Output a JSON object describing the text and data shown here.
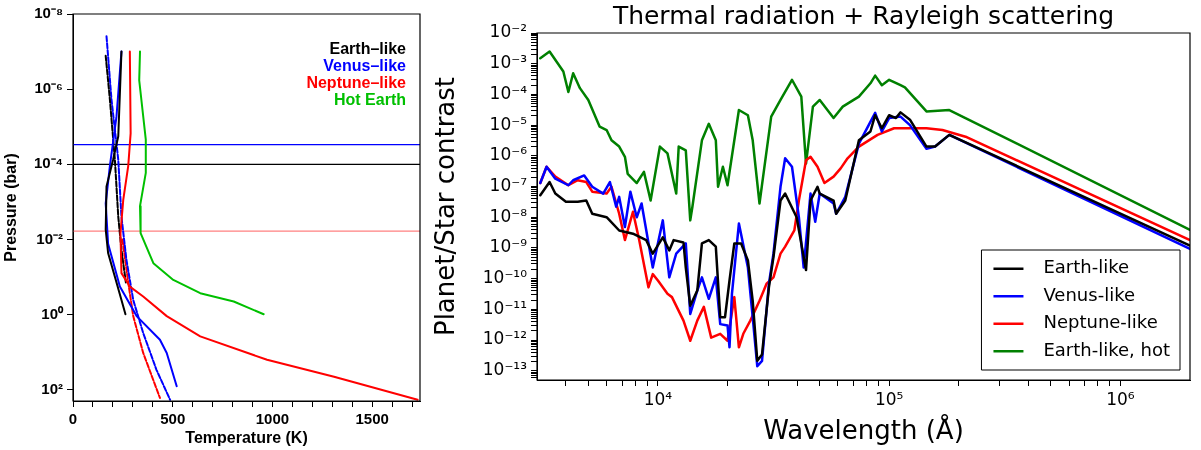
{
  "chart_data": [
    {
      "type": "line",
      "xlabel": "Temperature (K)",
      "ylabel": "Pressure (bar)",
      "log": "y",
      "legend": "top right",
      "xlim": [
        0,
        1740
      ],
      "xticks": [
        0,
        {
          "value": 100,
          "label": null
        },
        {
          "value": 200,
          "label": null
        },
        {
          "value": 300,
          "label": null
        },
        {
          "value": 400,
          "label": null
        },
        500,
        {
          "value": 600,
          "label": null
        },
        {
          "value": 700,
          "label": null
        },
        {
          "value": 800,
          "label": null
        },
        {
          "value": 900,
          "label": null
        },
        1000,
        {
          "value": 1100,
          "label": null
        },
        {
          "value": 1200,
          "label": null
        },
        {
          "value": 1300,
          "label": null
        },
        {
          "value": 1400,
          "label": null
        },
        1500,
        {
          "value": 1600,
          "label": null
        },
        {
          "value": 1700,
          "label": null
        }
      ],
      "ylim": [
        200,
        1e-08
      ],
      "yticks": [
        {
          "value": 1e-08,
          "label": "10⁻⁸"
        },
        {
          "value": 1e-06,
          "label": "10⁻⁶"
        },
        {
          "value": 0.0001,
          "label": "10⁻⁴"
        },
        {
          "value": 0.01,
          "label": "10⁻²"
        },
        {
          "value": 1,
          "label": "10⁰"
        },
        {
          "value": 100,
          "label": "10²"
        }
      ],
      "ref_lines": [
        {
          "axis": "y",
          "value": 3e-05,
          "color": "#0000ff"
        },
        {
          "axis": "y",
          "value": 0.0001,
          "color": "#000000"
        },
        {
          "axis": "y",
          "value": 0.006,
          "color": "#ff8080"
        }
      ],
      "series": [
        {
          "name": "Earth–like",
          "color": "#000000",
          "x": [
            243,
            227,
            201,
            168,
            164,
            176,
            210,
            243,
            263
          ],
          "values": [
            1e-07,
            1.8e-05,
            7.6e-05,
            0.00039,
            0.0055,
            0.023,
            0.098,
            0.41,
            0.98
          ]
        },
        {
          "name": "Venus–like",
          "color": "#0000ff",
          "x": [
            243,
            218,
            185,
            164,
            176,
            235,
            319,
            436,
            470,
            520
          ],
          "values": [
            1e-07,
            5.4e-06,
            0.00011,
            0.0011,
            0.013,
            0.18,
            1.1,
            4.7,
            10.5,
            81
          ]
        },
        {
          "name": "Neptune–like",
          "color": "#ff0000",
          "x": [
            285,
            289,
            277,
            252,
            238,
            243,
            285,
            352,
            470,
            638,
            973,
            1309,
            1728
          ],
          "values": [
            1e-07,
            1.5e-05,
            0.00011,
            0.00089,
            0.0068,
            0.079,
            0.18,
            0.33,
            1.1,
            3.8,
            16,
            45,
            186
          ]
        },
        {
          "name": "Hot Earth",
          "color": "#00c000",
          "x": [
            336,
            332,
            365,
            365,
            336,
            339,
            403,
            503,
            638,
            806,
            956
          ],
          "values": [
            1e-07,
            5.8e-07,
            2.2e-05,
            0.00017,
            0.0013,
            0.0068,
            0.043,
            0.12,
            0.27,
            0.45,
            0.98
          ]
        },
        {
          "color": "#000000",
          "line_style": "dashed",
          "x": [
            164,
            185,
            210,
            227,
            243,
            265
          ],
          "values": [
            1.3e-07,
            1.9e-06,
            7.6e-05,
            0.0025,
            0.019,
            0.14
          ]
        },
        {
          "color": "#0000ff",
          "line_style": "dashed",
          "x": [
            168,
            193,
            227,
            243,
            268,
            302,
            352,
            419,
            487
          ],
          "values": [
            3.9e-08,
            1.9e-06,
            7.6e-05,
            0.0025,
            0.035,
            0.41,
            3.1,
            30,
            186
          ]
        },
        {
          "color": "#ff0000",
          "line_style": "dashed",
          "x": [
            248,
            277,
            302,
            352,
            436
          ],
          "values": [
            0.01,
            0.14,
            1.1,
            10.5,
            166
          ]
        }
      ]
    },
    {
      "type": "line",
      "title": "Thermal radiation + Rayleigh scattering",
      "xlabel": "Wavelength (Å)",
      "ylabel": "Planet/Star contrast",
      "log": "xy",
      "legend": "bottom right",
      "xlim": [
        3000,
        2000000
      ],
      "xticks": [
        {
          "value": 4000,
          "label": null
        },
        {
          "value": 5000,
          "label": null
        },
        {
          "value": 6000,
          "label": null
        },
        {
          "value": 7000,
          "label": null
        },
        {
          "value": 8000,
          "label": null
        },
        {
          "value": 9000,
          "label": null
        },
        {
          "value": 10000,
          "label": "10⁴"
        },
        {
          "value": 20000,
          "label": null
        },
        {
          "value": 30000,
          "label": null
        },
        {
          "value": 40000,
          "label": null
        },
        {
          "value": 50000,
          "label": null
        },
        {
          "value": 60000,
          "label": null
        },
        {
          "value": 70000,
          "label": null
        },
        {
          "value": 80000,
          "label": null
        },
        {
          "value": 90000,
          "label": null
        },
        {
          "value": 100000,
          "label": "10⁵"
        },
        {
          "value": 200000,
          "label": null
        },
        {
          "value": 300000,
          "label": null
        },
        {
          "value": 400000,
          "label": null
        },
        {
          "value": 500000,
          "label": null
        },
        {
          "value": 600000,
          "label": null
        },
        {
          "value": 700000,
          "label": null
        },
        {
          "value": 800000,
          "label": null
        },
        {
          "value": 900000,
          "label": null
        },
        {
          "value": 1000000,
          "label": "10⁶"
        }
      ],
      "ylim": [
        5e-14,
        0.01
      ],
      "yticks": [
        {
          "value": 6e-14,
          "label": null
        },
        {
          "value": 7e-14,
          "label": null
        },
        {
          "value": 8e-14,
          "label": null
        },
        {
          "value": 9e-14,
          "label": null
        },
        {
          "value": 1e-13,
          "label": "10⁻¹³"
        },
        {
          "value": 2e-13,
          "label": null
        },
        {
          "value": 3e-13,
          "label": null
        },
        {
          "value": 4e-13,
          "label": null
        },
        {
          "value": 5e-13,
          "label": null
        },
        {
          "value": 6e-13,
          "label": null
        },
        {
          "value": 7e-13,
          "label": null
        },
        {
          "value": 8e-13,
          "label": null
        },
        {
          "value": 9e-13,
          "label": null
        },
        {
          "value": 1e-12,
          "label": "10⁻¹²"
        },
        {
          "value": 2e-12,
          "label": null
        },
        {
          "value": 3e-12,
          "label": null
        },
        {
          "value": 4e-12,
          "label": null
        },
        {
          "value": 5e-12,
          "label": null
        },
        {
          "value": 6e-12,
          "label": null
        },
        {
          "value": 7e-12,
          "label": null
        },
        {
          "value": 8e-12,
          "label": null
        },
        {
          "value": 9e-12,
          "label": null
        },
        {
          "value": 1e-11,
          "label": "10⁻¹¹"
        },
        {
          "value": 2e-11,
          "label": null
        },
        {
          "value": 3e-11,
          "label": null
        },
        {
          "value": 4e-11,
          "label": null
        },
        {
          "value": 5e-11,
          "label": null
        },
        {
          "value": 6e-11,
          "label": null
        },
        {
          "value": 7e-11,
          "label": null
        },
        {
          "value": 8e-11,
          "label": null
        },
        {
          "value": 9e-11,
          "label": null
        },
        {
          "value": 1e-10,
          "label": "10⁻¹⁰"
        },
        {
          "value": 2e-10,
          "label": null
        },
        {
          "value": 3e-10,
          "label": null
        },
        {
          "value": 4e-10,
          "label": null
        },
        {
          "value": 5e-10,
          "label": null
        },
        {
          "value": 6e-10,
          "label": null
        },
        {
          "value": 7e-10,
          "label": null
        },
        {
          "value": 8e-10,
          "label": null
        },
        {
          "value": 9e-10,
          "label": null
        },
        {
          "value": 1e-09,
          "label": "10⁻⁹"
        },
        {
          "value": 2e-09,
          "label": null
        },
        {
          "value": 3e-09,
          "label": null
        },
        {
          "value": 4e-09,
          "label": null
        },
        {
          "value": 5e-09,
          "label": null
        },
        {
          "value": 6e-09,
          "label": null
        },
        {
          "value": 7e-09,
          "label": null
        },
        {
          "value": 8e-09,
          "label": null
        },
        {
          "value": 9e-09,
          "label": null
        },
        {
          "value": 1e-08,
          "label": "10⁻⁸"
        },
        {
          "value": 2e-08,
          "label": null
        },
        {
          "value": 3e-08,
          "label": null
        },
        {
          "value": 4e-08,
          "label": null
        },
        {
          "value": 5e-08,
          "label": null
        },
        {
          "value": 6e-08,
          "label": null
        },
        {
          "value": 7e-08,
          "label": null
        },
        {
          "value": 8e-08,
          "label": null
        },
        {
          "value": 9e-08,
          "label": null
        },
        {
          "value": 1e-07,
          "label": "10⁻⁷"
        },
        {
          "value": 2e-07,
          "label": null
        },
        {
          "value": 3e-07,
          "label": null
        },
        {
          "value": 4e-07,
          "label": null
        },
        {
          "value": 5e-07,
          "label": null
        },
        {
          "value": 6e-07,
          "label": null
        },
        {
          "value": 7e-07,
          "label": null
        },
        {
          "value": 8e-07,
          "label": null
        },
        {
          "value": 9e-07,
          "label": null
        },
        {
          "value": 1e-06,
          "label": "10⁻⁶"
        },
        {
          "value": 2e-06,
          "label": null
        },
        {
          "value": 3e-06,
          "label": null
        },
        {
          "value": 4e-06,
          "label": null
        },
        {
          "value": 5e-06,
          "label": null
        },
        {
          "value": 6e-06,
          "label": null
        },
        {
          "value": 7e-06,
          "label": null
        },
        {
          "value": 8e-06,
          "label": null
        },
        {
          "value": 9e-06,
          "label": null
        },
        {
          "value": 1e-05,
          "label": "10⁻⁵"
        },
        {
          "value": 2e-05,
          "label": null
        },
        {
          "value": 3e-05,
          "label": null
        },
        {
          "value": 4e-05,
          "label": null
        },
        {
          "value": 5e-05,
          "label": null
        },
        {
          "value": 6e-05,
          "label": null
        },
        {
          "value": 7e-05,
          "label": null
        },
        {
          "value": 8e-05,
          "label": null
        },
        {
          "value": 9e-05,
          "label": null
        },
        {
          "value": 0.0001,
          "label": "10⁻⁴"
        },
        {
          "value": 0.0002,
          "label": null
        },
        {
          "value": 0.0003,
          "label": null
        },
        {
          "value": 0.0004,
          "label": null
        },
        {
          "value": 0.0005,
          "label": null
        },
        {
          "value": 0.0006,
          "label": null
        },
        {
          "value": 0.0007,
          "label": null
        },
        {
          "value": 0.0008,
          "label": null
        },
        {
          "value": 0.0009,
          "label": null
        },
        {
          "value": 0.001,
          "label": "10⁻³"
        },
        {
          "value": 0.002,
          "label": null
        },
        {
          "value": 0.003,
          "label": null
        },
        {
          "value": 0.004,
          "label": null
        },
        {
          "value": 0.005,
          "label": null
        },
        {
          "value": 0.006,
          "label": null
        },
        {
          "value": 0.007,
          "label": null
        },
        {
          "value": 0.008,
          "label": null
        },
        {
          "value": 0.009,
          "label": null
        },
        {
          "value": 0.01,
          "label": "10⁻²"
        }
      ],
      "series": [
        {
          "name": "Earth-like",
          "color": "#000000",
          "x": [
            3100,
            3400,
            3600,
            4000,
            4500,
            4900,
            5200,
            6000,
            6800,
            7800,
            8900,
            9500,
            10500,
            11200,
            11700,
            12900,
            13200,
            13800,
            14800,
            15500,
            16600,
            17800,
            18600,
            19500,
            20400,
            21400,
            22900,
            24500,
            25700,
            26900,
            28200,
            30200,
            31600,
            33900,
            35500,
            39800,
            42700,
            43700,
            45700,
            49000,
            50100,
            57500,
            59000,
            64600,
            74000,
            83000,
            87000,
            93000,
            100000,
            107000,
            112000,
            123000,
            145000,
            158000,
            182000,
            2000000
          ],
          "values": [
            5.2e-08,
            1.4e-07,
            5.9e-08,
            3.2e-08,
            3.2e-08,
            3.5e-08,
            1.3e-08,
            1e-08,
            3.7e-09,
            2.9e-09,
            1.8e-09,
            6.5e-10,
            2.2e-09,
            8.3e-10,
            1.8e-09,
            1.5e-09,
            2.3e-10,
            1.3e-11,
            4.1e-11,
            1.4e-09,
            1.8e-09,
            1.1e-09,
            5.5e-12,
            5.5e-12,
            8.7e-11,
            1.4e-09,
            1.4e-09,
            3.9e-10,
            1.9e-11,
            2.1e-13,
            3.4e-13,
            5.2e-11,
            5e-10,
            3.5e-08,
            5.9e-08,
            1e-08,
            5e-10,
            1.9e-10,
            3.5e-08,
            9.8e-08,
            5.9e-08,
            3.5e-08,
            1.3e-08,
            3.5e-08,
            3.2e-06,
            6.2e-06,
            2.1e-05,
            7.9e-06,
            2.1e-05,
            1.7e-05,
            2.6e-05,
            1.5e-05,
            2e-06,
            2e-06,
            4.8e-06,
            1.2e-09
          ]
        },
        {
          "name": "Venus-like",
          "color": "#0000ff",
          "x": [
            3100,
            3300,
            3600,
            4100,
            4300,
            4800,
            5200,
            5800,
            6200,
            6600,
            6800,
            7200,
            7600,
            8100,
            8500,
            9500,
            10500,
            11200,
            12000,
            13200,
            13800,
            14800,
            15500,
            16600,
            17800,
            18600,
            20000,
            20400,
            20900,
            22400,
            24500,
            25700,
            26900,
            28200,
            30200,
            31600,
            33900,
            35500,
            38000,
            40700,
            42700,
            45700,
            47900,
            50100,
            57500,
            59000,
            64600,
            74000,
            87000,
            93000,
            100000,
            112000,
            123000,
            145000,
            158000,
            182000,
            2000000
          ],
          "values": [
            1.3e-07,
            4.4e-07,
            1.8e-07,
            1.1e-07,
            1.6e-07,
            2.3e-07,
            9.8e-08,
            5.9e-08,
            1.4e-07,
            2.2e-08,
            4.6e-08,
            4.8e-09,
            6.8e-08,
            1e-08,
            2.8e-08,
            2.3e-10,
            7.9e-09,
            1.1e-10,
            6.5e-10,
            1.4e-09,
            7.1e-12,
            4.1e-11,
            1.1e-10,
            2.2e-11,
            1.1e-10,
            3.3e-12,
            3e-12,
            5.8e-13,
            3.2e-11,
            6.2e-09,
            2.3e-10,
            5.5e-12,
            1.4e-13,
            2.1e-13,
            6.8e-11,
            6.5e-10,
            9.8e-08,
            8.3e-07,
            4.4e-07,
            1e-08,
            2.3e-10,
            5.9e-08,
            7.1e-09,
            5.9e-08,
            2.8e-08,
            1.3e-08,
            4.6e-08,
            2.5e-06,
            2.5e-05,
            6.2e-06,
            1.7e-05,
            1.9e-05,
            1e-05,
            1.7e-06,
            2e-06,
            4.8e-06,
            9.3e-10
          ]
        },
        {
          "name": "Neptune-like",
          "color": "#ff0000",
          "x": [
            3100,
            3300,
            3600,
            4100,
            4500,
            4900,
            5200,
            6000,
            6300,
            6800,
            7200,
            7800,
            8300,
            9100,
            9500,
            10000,
            11000,
            11500,
            12900,
            13800,
            14800,
            15800,
            17000,
            18600,
            20000,
            21400,
            22400,
            23400,
            25100,
            27500,
            29500,
            31600,
            33900,
            35500,
            38900,
            40700,
            43700,
            45700,
            49000,
            52500,
            57500,
            61700,
            66100,
            74000,
            89100,
            105000,
            145000,
            170000,
            214000,
            2000000
          ],
          "values": [
            1.3e-07,
            4.4e-07,
            2.1e-07,
            1.1e-07,
            1.6e-07,
            1.4e-07,
            6.8e-08,
            5.9e-08,
            9.8e-08,
            1.3e-08,
            1.8e-09,
            1.5e-08,
            1.8e-09,
            5.2e-11,
            1.4e-10,
            8.7e-11,
            3.2e-11,
            2.5e-11,
            4.3e-12,
            9.5e-13,
            4.3e-12,
            1.2e-11,
            1.2e-12,
            1.6e-12,
            9.5e-13,
            2.5e-11,
            5.8e-13,
            1.6e-12,
            4.3e-12,
            1.9e-11,
            6.8e-11,
            1.1e-10,
            6.5e-10,
            1.1e-09,
            3.7e-09,
            3.5e-08,
            7.2e-07,
            9.3e-07,
            4.4e-07,
            1.3e-07,
            2.1e-07,
            3.9e-07,
            8.3e-07,
            2e-06,
            4.8e-06,
            7.9e-06,
            7.9e-06,
            6.9e-06,
            4.2e-06,
            1.8e-09
          ]
        },
        {
          "name": "Earth-like, hot",
          "color": "#008000",
          "x": [
            3100,
            3400,
            3900,
            4100,
            4300,
            4600,
            5000,
            5600,
            6000,
            6300,
            6800,
            7200,
            7400,
            8100,
            8700,
            9300,
            10200,
            11000,
            12000,
            12300,
            13200,
            13800,
            14100,
            15500,
            16600,
            17800,
            18200,
            19100,
            20000,
            22400,
            24500,
            25700,
            27500,
            30900,
            33900,
            38000,
            41700,
            43700,
            46800,
            50100,
            57500,
            63000,
            74000,
            83000,
            87000,
            93000,
            100000,
            112000,
            117000,
            145000,
            182000,
            2000000
          ],
          "values": [
            0.0015,
            0.0025,
            0.00056,
            0.00012,
            0.00049,
            0.00016,
            6.6e-05,
            8.9e-06,
            6.9e-06,
            3.2e-06,
            2e-06,
            9.3e-07,
            2.6e-07,
            1.3e-07,
            3e-07,
            3.5e-08,
            2e-06,
            1.2e-06,
            5.9e-08,
            2e-06,
            1.5e-06,
            7.9e-09,
            2.2e-08,
            3.2e-06,
            1.1e-05,
            3.2e-06,
            9.8e-08,
            4.4e-07,
            1.1e-07,
            3.1e-05,
            2.1e-05,
            3.2e-06,
            2.8e-08,
            1.9e-05,
            6.6e-05,
            0.0003,
            8.5e-05,
            5.6e-07,
            4e-05,
            6.6e-05,
            1.7e-05,
            4e-05,
            8.5e-05,
            0.00023,
            0.00041,
            0.0002,
            0.0003,
            0.0002,
            0.00017,
            2.8e-05,
            3.1e-05,
            3.9e-09
          ]
        }
      ]
    }
  ]
}
